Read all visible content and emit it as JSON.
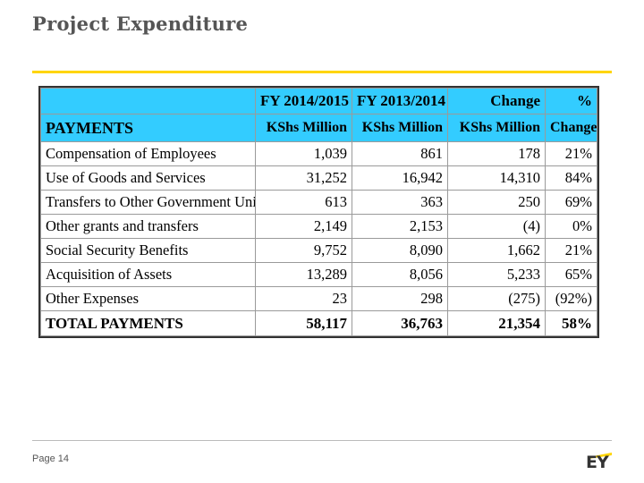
{
  "slide": {
    "title": "Project Expenditure",
    "page_label": "Page 14",
    "logo_text": "EY",
    "accent_color": "#FFD500",
    "header_color": "#33CCFF"
  },
  "table": {
    "header_row1": [
      "",
      "FY 2014/2015",
      "FY 2013/2014",
      "Change",
      "%"
    ],
    "header_row2": [
      "PAYMENTS",
      "KShs Million",
      "KShs Million",
      "KShs Million",
      "Change"
    ],
    "rows": [
      [
        "Compensation of Employees",
        "1,039",
        "861",
        "178",
        "21%"
      ],
      [
        "Use of Goods and Services",
        "31,252",
        "16,942",
        "14,310",
        "84%"
      ],
      [
        "Transfers to Other Government Units",
        "613",
        "363",
        "250",
        "69%"
      ],
      [
        "Other grants and transfers",
        "2,149",
        "2,153",
        "(4)",
        "0%"
      ],
      [
        "Social Security Benefits",
        "9,752",
        "8,090",
        "1,662",
        "21%"
      ],
      [
        "Acquisition of Assets",
        "13,289",
        "8,056",
        "5,233",
        "65%"
      ],
      [
        "Other Expenses",
        "23",
        "298",
        "(275)",
        "(92%)"
      ]
    ],
    "total": [
      "TOTAL PAYMENTS",
      "58,117",
      "36,763",
      "21,354",
      "58%"
    ]
  }
}
